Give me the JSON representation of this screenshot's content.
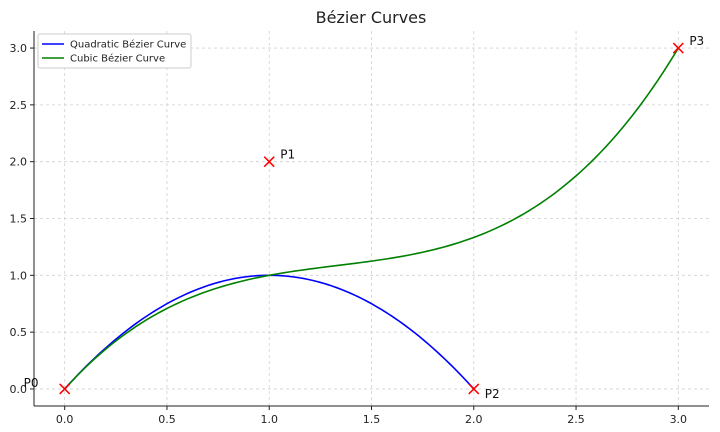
{
  "chart_data": {
    "type": "line",
    "title": "Bézier Curves",
    "xlabel": "",
    "ylabel": "",
    "xlim": [
      -0.15,
      3.15
    ],
    "ylim": [
      -0.15,
      3.15
    ],
    "x_ticks": [
      "0.0",
      "0.5",
      "1.0",
      "1.5",
      "2.0",
      "2.5",
      "3.0"
    ],
    "y_ticks": [
      "0.0",
      "0.5",
      "1.0",
      "1.5",
      "2.0",
      "2.5",
      "3.0"
    ],
    "grid": true,
    "legend_position": "top-left",
    "series": [
      {
        "name": "Quadratic Bézier Curve",
        "color": "#0000ff",
        "control_points": [
          [
            0,
            0
          ],
          [
            1,
            2
          ],
          [
            2,
            0
          ]
        ],
        "x": [
          0.0,
          0.2,
          0.4,
          0.6,
          0.8,
          1.0,
          1.2,
          1.4,
          1.6,
          1.8,
          2.0
        ],
        "y": [
          0.0,
          0.36,
          0.64,
          0.84,
          0.96,
          1.0,
          0.96,
          0.84,
          0.64,
          0.36,
          0.0
        ]
      },
      {
        "name": "Cubic Bézier Curve",
        "color": "#008000",
        "control_points": [
          [
            0,
            0
          ],
          [
            1,
            2
          ],
          [
            2,
            0
          ],
          [
            3,
            3
          ]
        ],
        "x": [
          0.0,
          0.3,
          0.6,
          0.9,
          1.2,
          1.5,
          1.8,
          2.1,
          2.4,
          2.7,
          3.0
        ],
        "y": [
          0.0,
          0.489,
          0.792,
          0.951,
          1.008,
          1.125,
          1.224,
          1.407,
          1.776,
          2.313,
          3.0
        ]
      }
    ],
    "points": [
      {
        "label": "P0",
        "x": 0,
        "y": 0
      },
      {
        "label": "P1",
        "x": 1,
        "y": 2
      },
      {
        "label": "P2",
        "x": 2,
        "y": 0
      },
      {
        "label": "P3",
        "x": 3,
        "y": 3
      }
    ],
    "marker_color": "#ff0000"
  }
}
